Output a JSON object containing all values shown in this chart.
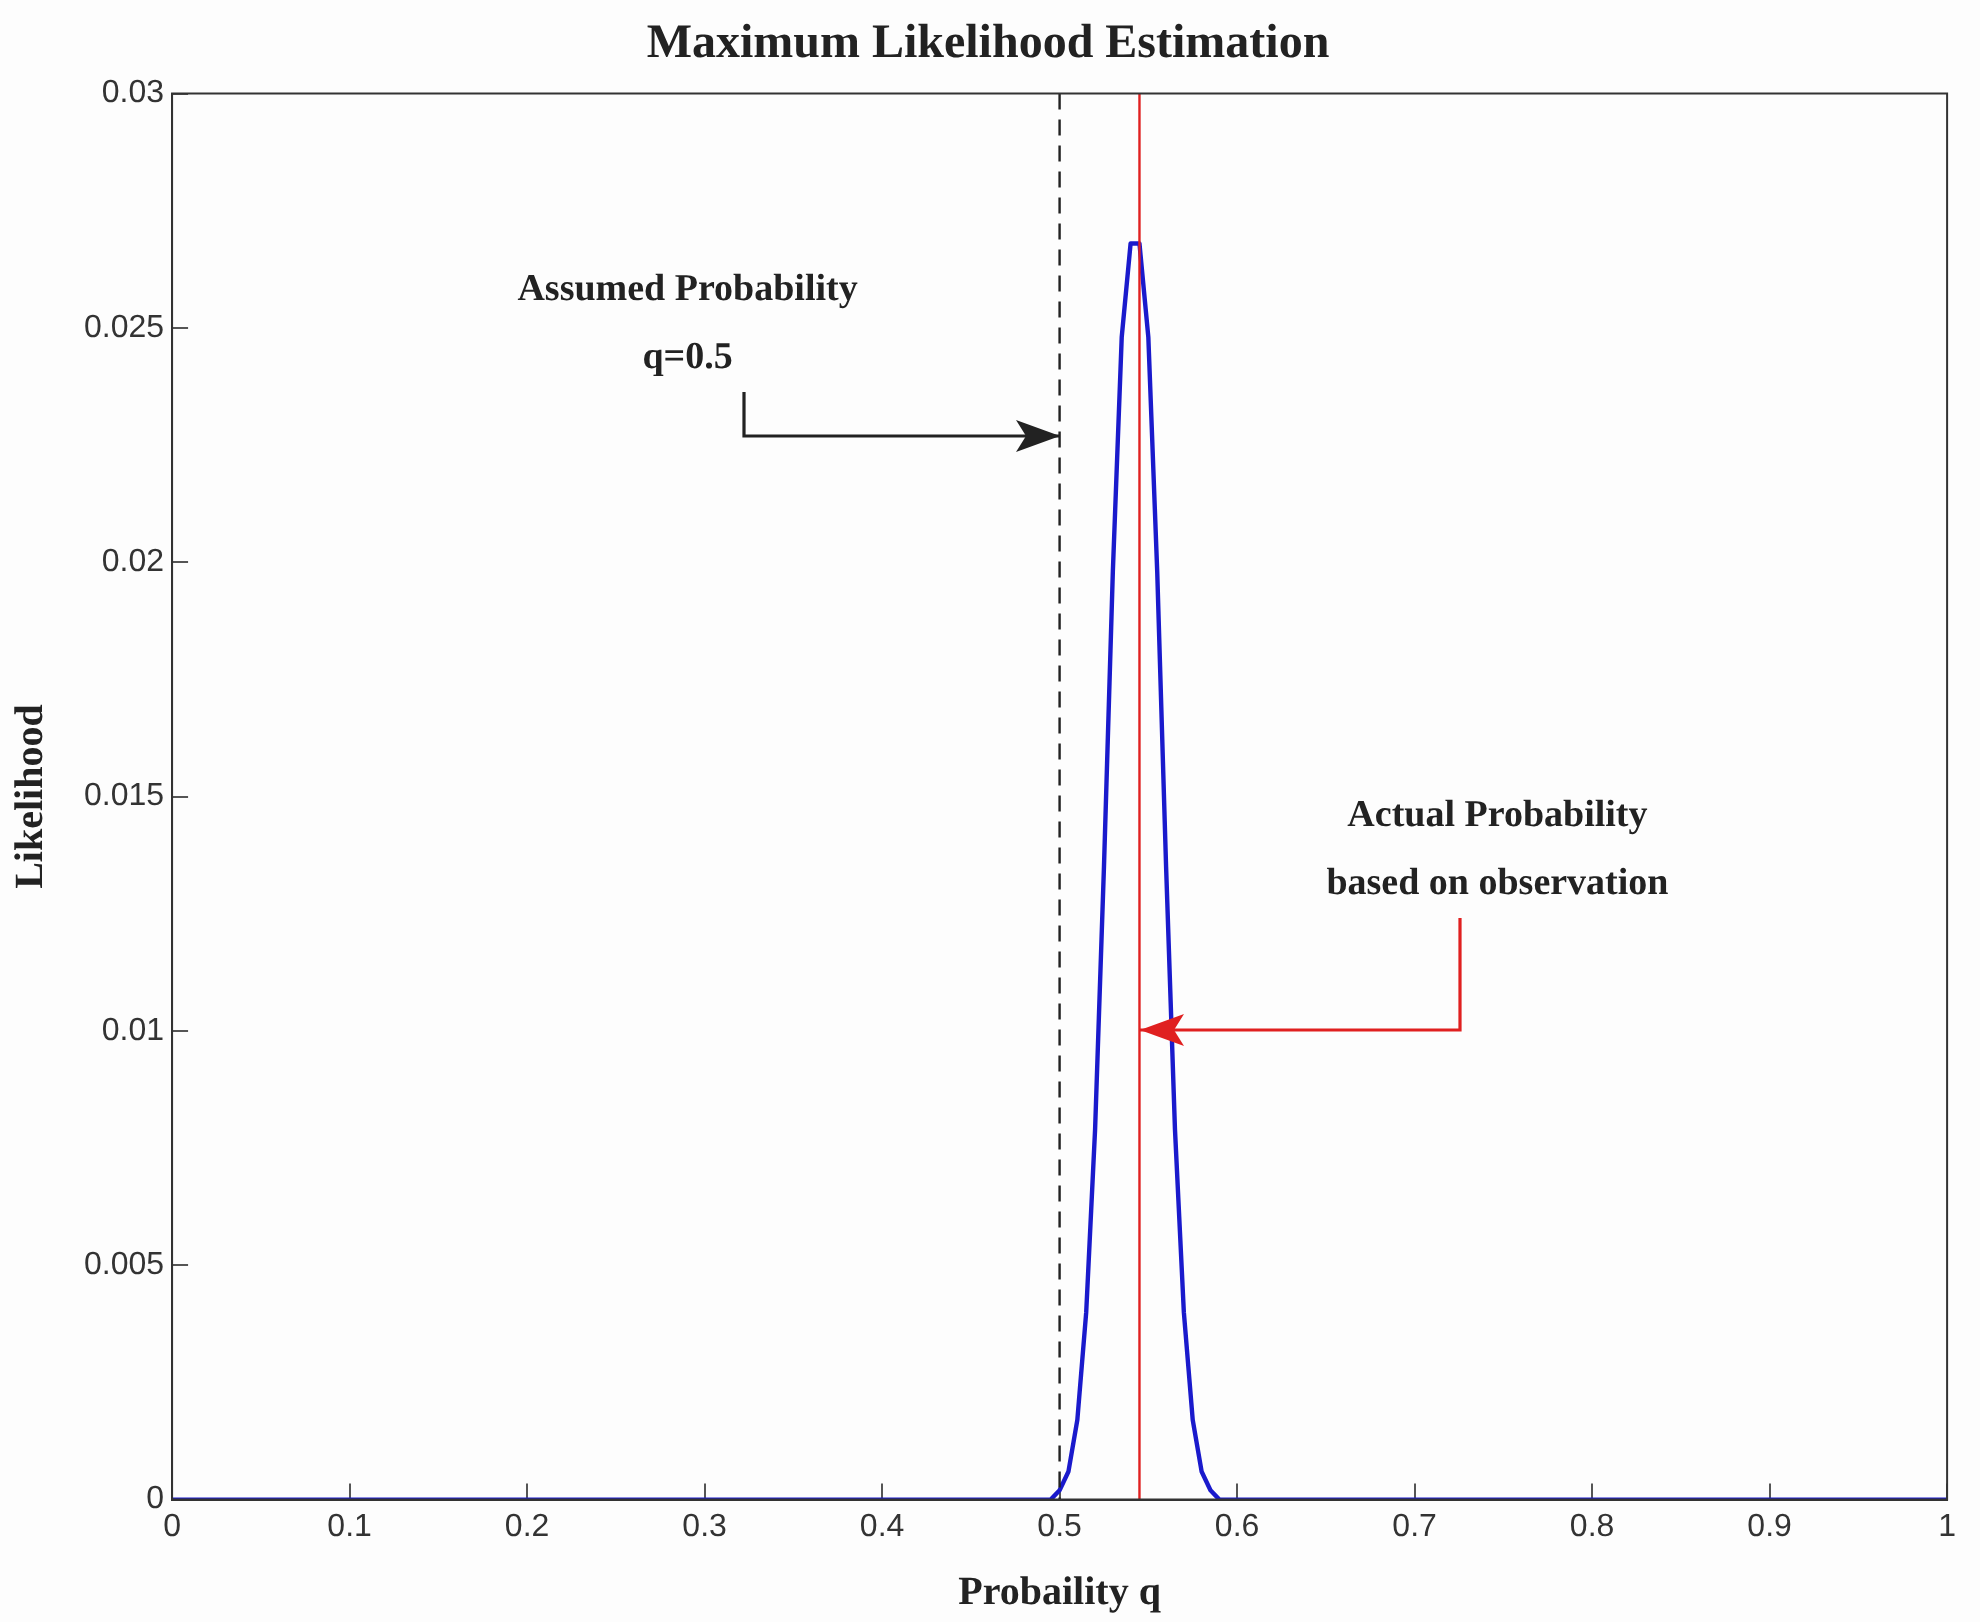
{
  "chart_data": {
    "type": "line",
    "title": "Maximum Likelihood Estimation",
    "xlabel": "Probaility q",
    "ylabel": "Likelihood",
    "series": [
      {
        "color": "#1a1acc",
        "x": [
          0,
          0.45,
          0.495,
          0.5,
          0.505,
          0.51,
          0.515,
          0.52,
          0.525,
          0.53,
          0.535,
          0.54,
          0.545,
          0.55,
          0.555,
          0.56,
          0.565,
          0.57,
          0.575,
          0.58,
          0.585,
          0.59,
          0.595,
          0.6,
          0.65,
          1
        ],
        "values": [
          0,
          0,
          0,
          0.0002,
          0.0006,
          0.0017,
          0.004,
          0.0079,
          0.0135,
          0.0198,
          0.0248,
          0.0268,
          0.0268,
          0.0248,
          0.0198,
          0.0135,
          0.0079,
          0.004,
          0.0017,
          0.0006,
          0.0002,
          0,
          0,
          0,
          0,
          0
        ]
      }
    ],
    "xlim": [
      0,
      1
    ],
    "xticks": [
      0,
      0.1,
      0.2,
      0.3,
      0.4,
      0.5,
      0.6,
      0.7,
      0.8,
      0.9,
      1
    ],
    "ylim": [
      0,
      0.03
    ],
    "yticks": [
      0,
      0.005,
      0.01,
      0.015,
      0.02,
      0.025,
      0.03
    ],
    "grid": false,
    "legend": false,
    "marker": "none",
    "line_style": "solid",
    "ref_lines": [
      {
        "axis": "x",
        "value": 0.5,
        "color": "#222222",
        "line_style": "dashed"
      },
      {
        "axis": "x",
        "value": 0.545,
        "color": "#e02020",
        "line_style": "solid"
      }
    ],
    "annotations": [
      {
        "text": "Assumed Probability\nq=0.5",
        "x": 0.5,
        "y": 0.0227
      },
      {
        "text": "Actual Probability\nbased on observation",
        "x": 0.545,
        "y": 0.01
      }
    ]
  }
}
